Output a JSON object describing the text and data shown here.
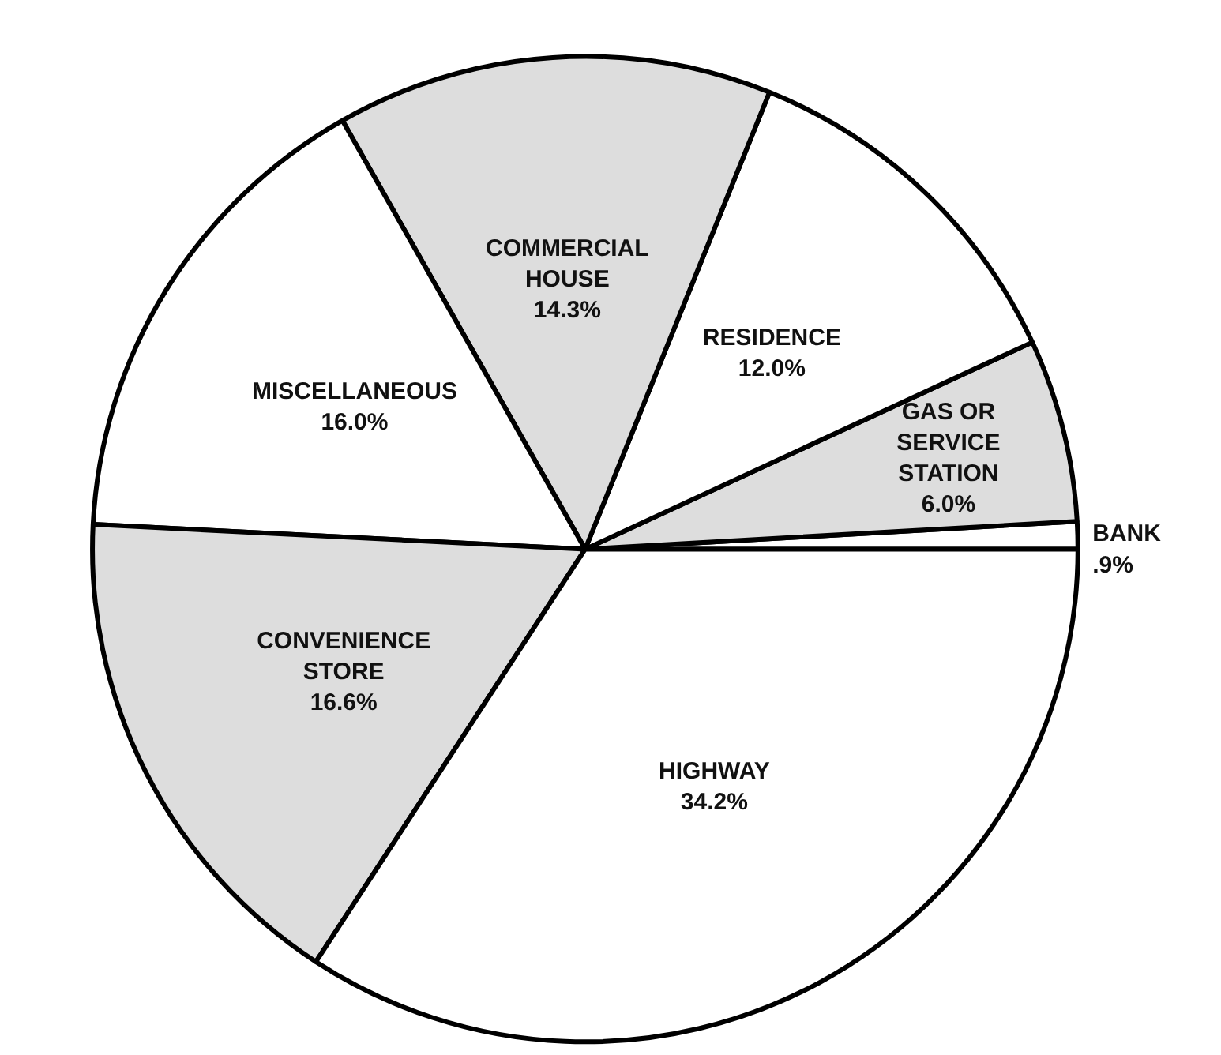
{
  "chart_data": {
    "type": "pie",
    "categories": [
      "BANK",
      "GAS OR SERVICE STATION",
      "RESIDENCE",
      "COMMERCIAL HOUSE",
      "MISCELLANEOUS",
      "CONVENIENCE STORE",
      "HIGHWAY"
    ],
    "values": [
      0.9,
      6.0,
      12.0,
      14.3,
      16.0,
      16.6,
      34.2
    ],
    "value_labels": [
      ".9%",
      "6.0%",
      "12.0%",
      "14.3%",
      "16.0%",
      "16.6%",
      "34.2%"
    ],
    "colors": [
      "#ffffff",
      "#dddddd",
      "#ffffff",
      "#dddddd",
      "#ffffff",
      "#dddddd",
      "#ffffff"
    ]
  }
}
